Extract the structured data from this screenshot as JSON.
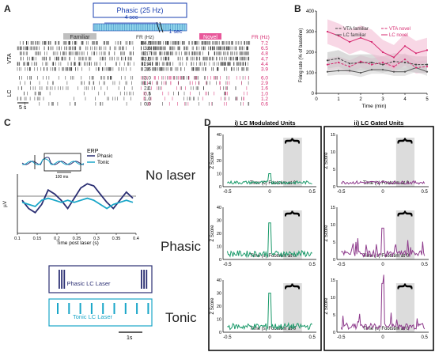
{
  "panels": {
    "A": "A",
    "B": "B",
    "C": "C",
    "D": "D"
  },
  "colors": {
    "lc_pink": "#d6286f",
    "vta_gray": "#444444",
    "teal": "#1aa6c8",
    "navy": "#2b2f73",
    "green": "#1a9a6a",
    "purple": "#8e3b8c"
  },
  "panel_a": {
    "stim_title": "Phasic (25 Hz)",
    "stim_dur1": "4 sec",
    "stim_dur2": "1 sec",
    "familiar_label": "Familiar",
    "novel_label": "Novel",
    "fr_label": "FR (Hz)",
    "vta_label": "VTA",
    "lc_label": "LC",
    "scale": "5 s",
    "vta_fam_rates": [
      "4.5",
      "3.6",
      "2.7",
      "3.5",
      "2.4",
      "2.6"
    ],
    "vta_nov_rates": [
      "7.2",
      "6.5",
      "4.8",
      "4.7",
      "4.4",
      "3.9"
    ],
    "lc_fam_rates": [
      "3.0",
      "1.4",
      "2.1",
      "0.5",
      "1.0",
      "0.0"
    ],
    "lc_nov_rates": [
      "6.0",
      "2.9",
      "1.6",
      "1.0",
      "1.2",
      "0.6"
    ]
  },
  "chart_data": [
    {
      "type": "line",
      "xlabel": "Time (min)",
      "ylabel": "Firing rate (% of baseline)",
      "xlim": [
        0,
        5
      ],
      "ylim": [
        0,
        400
      ],
      "xticks": [
        0,
        1,
        2,
        3,
        4,
        5
      ],
      "yticks": [
        0,
        100,
        200,
        300,
        400
      ],
      "legend": "top-right",
      "x": [
        0.5,
        1,
        1.5,
        2,
        2.5,
        3,
        3.5,
        4,
        4.5,
        5
      ],
      "series": [
        {
          "name": "VTA familiar",
          "values": [
            160,
            170,
            145,
            150,
            150,
            140,
            155,
            150,
            140,
            140
          ]
        },
        {
          "name": "LC familiar",
          "values": [
            105,
            110,
            110,
            100,
            115,
            115,
            105,
            105,
            125,
            105
          ]
        },
        {
          "name": "VTA novel",
          "values": [
            140,
            150,
            130,
            155,
            140,
            150,
            130,
            165,
            125,
            130
          ]
        },
        {
          "name": "LC novel",
          "values": [
            300,
            280,
            250,
            270,
            250,
            200,
            175,
            230,
            195,
            210
          ]
        }
      ]
    },
    {
      "type": "line",
      "xlabel": "Time post laser (s)",
      "ylabel": "µV",
      "legend": "top-right",
      "xticks": [
        "0.1",
        "0.15",
        "0.2",
        "0.25",
        "0.3",
        "0.35",
        "0.4"
      ],
      "title": "ERP",
      "inset_scale": "100 ms",
      "series": [
        {
          "name": "Phasic",
          "values": [
            -2,
            -6,
            -8,
            -4,
            3,
            1,
            -2,
            -6,
            -1,
            4,
            6,
            5,
            1,
            -3,
            -6,
            -2,
            2,
            -1
          ]
        },
        {
          "name": "Tonic",
          "values": [
            -3,
            -4,
            -5,
            -2,
            -1,
            -2,
            -3,
            -2,
            -3,
            -2,
            -1,
            -2,
            -4,
            -6,
            -4,
            -3,
            -2,
            -3
          ]
        }
      ]
    }
  ],
  "panel_c_boxes": {
    "phasic": "Phasic LC Laser",
    "tonic": "Tonic LC Laser",
    "scale": "1s"
  },
  "panel_d": {
    "col1_title": "i) LC Modulated Units",
    "col2_title": "ii) LC Gated Units",
    "row_labels": [
      "No laser",
      "Phasic",
      "Tonic"
    ],
    "xlabel": "Time (s) Footstim at 0",
    "ylabel": "Z Score",
    "col1_yticks": [
      "0",
      "10",
      "20",
      "30",
      "40"
    ],
    "col2_yticks": [
      "0",
      "5",
      "10",
      "15"
    ],
    "xticks": [
      "-0.5",
      "0",
      "0.5"
    ]
  }
}
